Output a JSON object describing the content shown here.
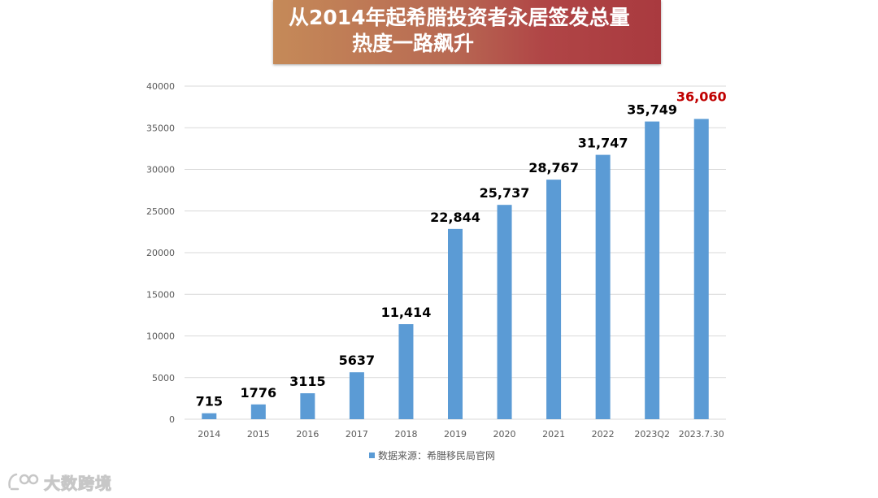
{
  "banner": {
    "title_line1": "从2014年起希腊投资者永居签发总量",
    "title_line2": "热度一路飙升"
  },
  "watermark": {
    "text": "大数跨境",
    "icon": "logo-icon"
  },
  "colors": {
    "bar": "#5b9bd5",
    "highlight": "#c00000",
    "grid": "#d9d9d9"
  },
  "chart_data": {
    "type": "bar",
    "title": "从2014年起希腊投资者永居签发总量 热度一路飙升",
    "categories": [
      "2014",
      "2015",
      "2016",
      "2017",
      "2018",
      "2019",
      "2020",
      "2021",
      "2022",
      "2023Q2",
      "2023.7.30"
    ],
    "values": [
      715,
      1776,
      3115,
      5637,
      11414,
      22844,
      25737,
      28767,
      31747,
      35749,
      36060
    ],
    "data_labels": [
      "715",
      "1776",
      "3115",
      "5637",
      "11,414",
      "22,844",
      "25,737",
      "28,767",
      "31,747",
      "35,749",
      "36,060"
    ],
    "highlight_index": 10,
    "y_ticks": [
      0,
      5000,
      10000,
      15000,
      20000,
      25000,
      30000,
      35000,
      40000
    ],
    "ylim": [
      0,
      40000
    ],
    "xlabel": "",
    "ylabel": "",
    "grid": true,
    "legend": {
      "label": "数据来源：希腊移民局官网",
      "position": "bottom"
    }
  }
}
